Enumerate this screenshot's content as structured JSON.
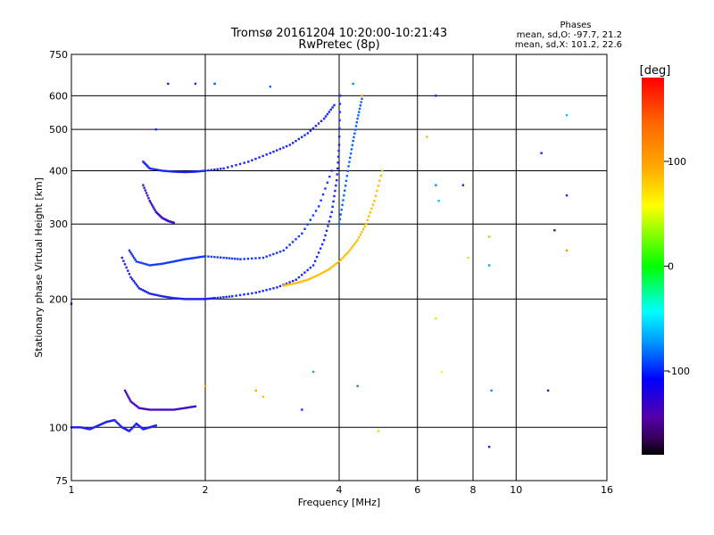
{
  "chart_data": {
    "type": "scatter",
    "title": "Tromsø 20161204 10:20:00-10:21:43",
    "subtitle": "RwPretec (8p)",
    "xlabel": "Frequency [MHz]",
    "ylabel": "Stationary phase Virtual Height [km]",
    "x_scale": "log",
    "y_scale": "log",
    "xlim": [
      1,
      16
    ],
    "ylim": [
      75,
      750
    ],
    "x_ticks": [
      1,
      2,
      4,
      6,
      8,
      10,
      16
    ],
    "x_tick_labels": [
      "1",
      "2",
      "4",
      "6",
      "8",
      "10",
      "16"
    ],
    "y_ticks": [
      75,
      100,
      200,
      300,
      400,
      500,
      600,
      750
    ],
    "y_tick_labels": [
      "75",
      "100",
      "200",
      "300",
      "400",
      "500",
      "600",
      "750"
    ],
    "grid": true,
    "stats": {
      "heading": "Phases",
      "line_o": "mean, sd,O: -97.7, 21.2",
      "line_x": "mean, sd,X: 101.2, 22.6"
    },
    "colorbar": {
      "label": "[deg]",
      "range": [
        -180,
        180
      ],
      "ticks": [
        100,
        0,
        -100
      ],
      "tick_labels": [
        "100",
        "0",
        "-100"
      ]
    },
    "traces": [
      {
        "x": [
          1.0,
          1.05,
          1.1,
          1.15,
          1.2,
          1.25,
          1.3,
          1.35,
          1.4,
          1.45,
          1.5,
          1.55
        ],
        "y": [
          100,
          100,
          99,
          101,
          103,
          104,
          100,
          98,
          102,
          99,
          100,
          101
        ],
        "phase": -115
      },
      {
        "x": [
          1.32,
          1.36,
          1.42,
          1.5,
          1.6,
          1.7,
          1.8,
          1.9
        ],
        "y": [
          122,
          115,
          111,
          110,
          110,
          110,
          111,
          112
        ],
        "phase": -130
      },
      {
        "x": [
          1.3,
          1.36,
          1.42,
          1.5,
          1.6,
          1.7,
          1.8,
          1.9,
          2.0,
          2.1
        ],
        "y": [
          250,
          225,
          212,
          206,
          203,
          201,
          200,
          200,
          200,
          201
        ],
        "phase": -115
      },
      {
        "x": [
          2.1,
          2.3,
          2.6,
          2.9,
          3.2,
          3.5,
          3.7,
          3.85,
          3.95,
          4.0,
          4.02
        ],
        "y": [
          201,
          203,
          207,
          213,
          222,
          240,
          275,
          320,
          380,
          460,
          600
        ],
        "phase": -110
      },
      {
        "x": [
          1.35,
          1.4,
          1.5,
          1.6,
          1.7,
          1.8,
          1.9,
          2.0,
          2.2,
          2.4,
          2.7,
          3.0,
          3.3,
          3.6,
          3.85
        ],
        "y": [
          260,
          245,
          240,
          242,
          245,
          248,
          250,
          252,
          250,
          248,
          250,
          260,
          285,
          330,
          400
        ],
        "phase": -105
      },
      {
        "x": [
          1.45,
          1.5,
          1.6,
          1.7,
          1.8,
          1.9,
          2.0,
          2.2,
          2.5,
          2.8,
          3.1,
          3.4,
          3.7,
          3.9
        ],
        "y": [
          420,
          405,
          400,
          398,
          397,
          398,
          400,
          405,
          420,
          440,
          460,
          490,
          530,
          570
        ],
        "phase": -112
      },
      {
        "x": [
          1.45,
          1.5,
          1.55,
          1.6,
          1.65,
          1.7
        ],
        "y": [
          370,
          340,
          320,
          310,
          305,
          302
        ],
        "phase": -128
      },
      {
        "x": [
          3.0,
          3.2,
          3.4,
          3.6,
          3.8,
          4.0,
          4.2,
          4.4,
          4.6,
          4.8,
          5.0
        ],
        "y": [
          215,
          218,
          222,
          228,
          235,
          245,
          258,
          275,
          300,
          340,
          400
        ],
        "phase": 110
      },
      {
        "x": [
          4.0,
          4.1,
          4.2,
          4.3,
          4.4,
          4.5
        ],
        "y": [
          300,
          350,
          410,
          470,
          530,
          590
        ],
        "phase": -92
      }
    ],
    "isolated_points": [
      {
        "x": 6.6,
        "y": 600,
        "phase": -110
      },
      {
        "x": 7.6,
        "y": 370,
        "phase": -110
      },
      {
        "x": 6.6,
        "y": 370,
        "phase": -80
      },
      {
        "x": 6.7,
        "y": 340,
        "phase": -60
      },
      {
        "x": 8.7,
        "y": 280,
        "phase": 30
      },
      {
        "x": 8.7,
        "y": 240,
        "phase": -70
      },
      {
        "x": 13.0,
        "y": 540,
        "phase": -60
      },
      {
        "x": 13.0,
        "y": 260,
        "phase": 130
      },
      {
        "x": 12.2,
        "y": 290,
        "phase": -140
      },
      {
        "x": 11.4,
        "y": 440,
        "phase": -120
      },
      {
        "x": 13.0,
        "y": 350,
        "phase": -110
      },
      {
        "x": 8.8,
        "y": 122,
        "phase": -80
      },
      {
        "x": 11.8,
        "y": 122,
        "phase": -130
      },
      {
        "x": 8.7,
        "y": 90,
        "phase": -110
      },
      {
        "x": 6.8,
        "y": 135,
        "phase": 70
      },
      {
        "x": 6.6,
        "y": 180,
        "phase": 50
      },
      {
        "x": 3.3,
        "y": 110,
        "phase": -110
      },
      {
        "x": 2.6,
        "y": 122,
        "phase": 120
      },
      {
        "x": 2.7,
        "y": 118,
        "phase": 110
      },
      {
        "x": 3.5,
        "y": 135,
        "phase": -70
      },
      {
        "x": 4.4,
        "y": 125,
        "phase": -80
      },
      {
        "x": 4.9,
        "y": 98,
        "phase": 40
      },
      {
        "x": 2.0,
        "y": 125,
        "phase": 120
      },
      {
        "x": 1.0,
        "y": 195,
        "phase": -110
      },
      {
        "x": 1.55,
        "y": 500,
        "phase": -110
      },
      {
        "x": 1.65,
        "y": 640,
        "phase": -120
      },
      {
        "x": 1.9,
        "y": 640,
        "phase": -110
      },
      {
        "x": 2.1,
        "y": 640,
        "phase": -100
      },
      {
        "x": 2.8,
        "y": 630,
        "phase": -90
      },
      {
        "x": 4.5,
        "y": 600,
        "phase": 120
      },
      {
        "x": 4.3,
        "y": 640,
        "phase": -80
      },
      {
        "x": 6.3,
        "y": 480,
        "phase": 110
      },
      {
        "x": 7.8,
        "y": 250,
        "phase": 100
      }
    ]
  }
}
